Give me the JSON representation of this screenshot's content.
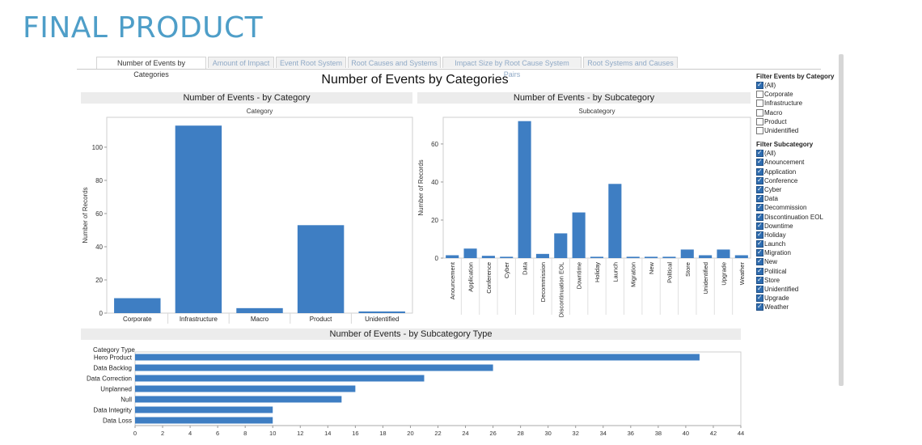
{
  "page": {
    "heading": "FINAL PRODUCT"
  },
  "tabs": [
    {
      "label": "Number of Events by Categories",
      "active": true
    },
    {
      "label": "Amount of Impact",
      "active": false
    },
    {
      "label": "Event Root System",
      "active": false
    },
    {
      "label": "Root Causes and Systems",
      "active": false
    },
    {
      "label": "Impact Size by Root Cause System Pairs",
      "active": false
    },
    {
      "label": "Root Systems and Causes",
      "active": false
    }
  ],
  "dashboard": {
    "title": "Number of Events by Categories"
  },
  "filters": [
    {
      "title": "Filter Events by Category",
      "items": [
        {
          "label": "(All)",
          "checked": true
        },
        {
          "label": "Corporate",
          "checked": false
        },
        {
          "label": "Infrastructure",
          "checked": false
        },
        {
          "label": "Macro",
          "checked": false
        },
        {
          "label": "Product",
          "checked": false
        },
        {
          "label": "Unidentified",
          "checked": false
        }
      ]
    },
    {
      "title": "Filter Subcategory",
      "items": [
        {
          "label": "(All)",
          "checked": true
        },
        {
          "label": "Anouncement",
          "checked": true
        },
        {
          "label": "Application",
          "checked": true
        },
        {
          "label": "Conference",
          "checked": true
        },
        {
          "label": "Cyber",
          "checked": true
        },
        {
          "label": "Data",
          "checked": true
        },
        {
          "label": "Decommission",
          "checked": true
        },
        {
          "label": "Discontinuation EOL",
          "checked": true
        },
        {
          "label": "Downtime",
          "checked": true
        },
        {
          "label": "Holiday",
          "checked": true
        },
        {
          "label": "Launch",
          "checked": true
        },
        {
          "label": "Migration",
          "checked": true
        },
        {
          "label": "New",
          "checked": true
        },
        {
          "label": "Political",
          "checked": true
        },
        {
          "label": "Store",
          "checked": true
        },
        {
          "label": "Unidentified",
          "checked": true
        },
        {
          "label": "Upgrade",
          "checked": true
        },
        {
          "label": "Weather",
          "checked": true
        }
      ]
    }
  ],
  "colors": {
    "bar": "#3e7ec3",
    "panel_header": "#ececec",
    "heading": "#4e9ec8",
    "tab_inactive_text": "#8fa9c6"
  },
  "chart_data": [
    {
      "type": "bar",
      "title": "Number of Events - by Category",
      "column_header": "Category",
      "ylabel": "Number of Records",
      "categories": [
        "Corporate",
        "Infrastructure",
        "Macro",
        "Product",
        "Unidentified"
      ],
      "values": [
        9,
        113,
        3,
        53,
        1
      ],
      "ylim": [
        0,
        118
      ],
      "yticks": [
        0,
        20,
        40,
        60,
        80,
        100
      ]
    },
    {
      "type": "bar",
      "title": "Number of Events - by Subcategory",
      "column_header": "Subcategory",
      "ylabel": "Number of Records",
      "categories": [
        "Anouncement",
        "Application",
        "Conference",
        "Cyber",
        "Data",
        "Decommission",
        "Discontinuation EOL",
        "Downtime",
        "Holiday",
        "Launch",
        "Migration",
        "New",
        "Political",
        "Store",
        "Unidentified",
        "Upgrade",
        "Weather"
      ],
      "values": [
        1.5,
        5,
        1.2,
        0.7,
        72,
        2.2,
        13,
        24,
        0.7,
        39,
        0.7,
        0.7,
        0.7,
        4.5,
        1.5,
        4.5,
        1.5
      ],
      "ylim": [
        0,
        74
      ],
      "yticks": [
        0,
        20,
        40,
        60
      ]
    },
    {
      "type": "bar",
      "orientation": "horizontal",
      "title": "Number of Events - by Subcategory Type",
      "row_header": "Category Type",
      "categories": [
        "Hero Product",
        "Data Backlog",
        "Data Correction",
        "Unplanned",
        "Null",
        "Data Integrity",
        "Data Loss"
      ],
      "values": [
        41,
        26,
        21,
        16,
        15,
        10,
        10
      ],
      "xlim": [
        0,
        44
      ],
      "xticks": [
        0,
        2,
        4,
        6,
        8,
        10,
        12,
        14,
        16,
        18,
        20,
        22,
        24,
        26,
        28,
        30,
        32,
        34,
        36,
        38,
        40,
        42,
        44
      ]
    }
  ]
}
